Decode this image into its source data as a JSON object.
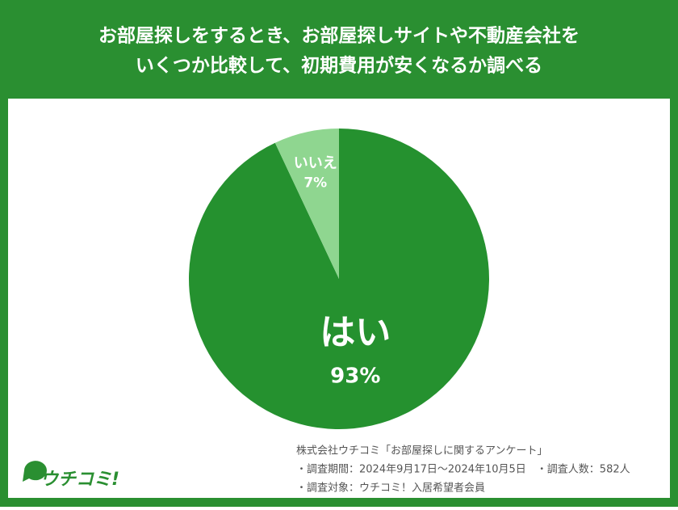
{
  "chart_data": {
    "type": "pie",
    "title": [
      "お部屋探しをするとき、お部屋探しサイトや不動産会社を",
      "いくつか比較して、初期費用が安くなるか調べる"
    ],
    "categories": [
      "はい",
      "いいえ"
    ],
    "values": [
      93,
      7
    ],
    "value_labels": [
      "93%",
      "7%"
    ],
    "colors": [
      "#25912f",
      "#8fd690"
    ],
    "notes": [
      "株式会社ウチコミ「お部屋探しに関するアンケート」",
      "・調査期間：2024年9月17日～2024年10月5日　・調査人数：582人",
      "・調査対象：ウチコミ！入居希望者会員"
    ],
    "logo": "ウチコミ!"
  }
}
